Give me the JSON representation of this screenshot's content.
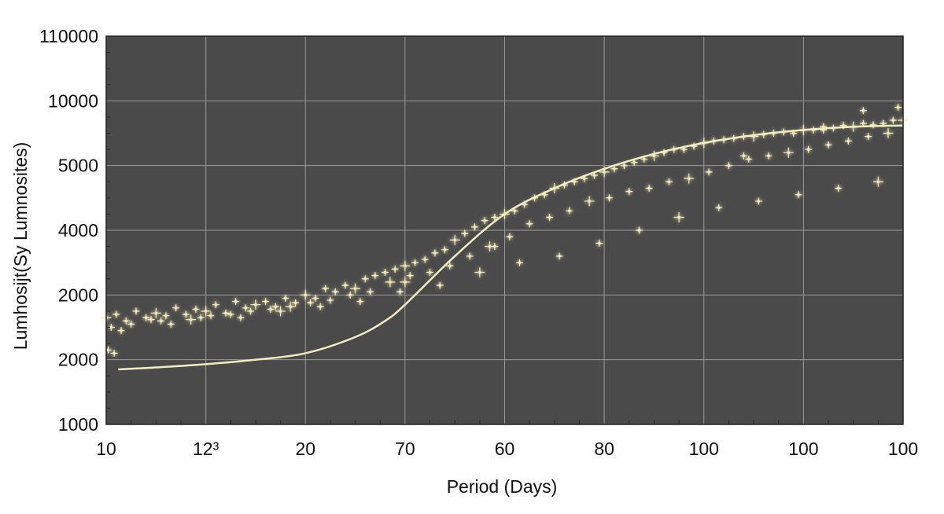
{
  "chart_data": {
    "type": "scatter",
    "title": "",
    "xlabel": "Period (Days)",
    "ylabel": "Lumhosijt(Sy Lumnosites)",
    "x_tick_labels": [
      "10",
      "12³",
      "20",
      "70",
      "60",
      "80",
      "100",
      "100",
      "100"
    ],
    "y_tick_labels": [
      "1000",
      "2000",
      "2000",
      "4000",
      "5000",
      "10000",
      "110000"
    ],
    "xlim": [
      0,
      8
    ],
    "ylim": [
      0,
      6
    ],
    "grid": true,
    "legend": "none",
    "colors": {
      "plot_background": "#4a4a4a",
      "grid": "#9a9a9a",
      "points": "#f4eab8",
      "curve": "#f2eec0",
      "text": "#111111"
    },
    "series": [
      {
        "name": "fit-curve",
        "style": "line",
        "x": [
          0.12,
          0.5,
          1.0,
          1.5,
          2.0,
          2.5,
          2.8,
          3.0,
          3.5,
          4.0,
          4.5,
          5.0,
          5.5,
          6.0,
          6.5,
          7.0,
          7.5,
          8.0
        ],
        "y": [
          0.85,
          0.88,
          0.93,
          1.0,
          1.1,
          1.35,
          1.6,
          1.85,
          2.6,
          3.25,
          3.65,
          3.95,
          4.18,
          4.35,
          4.47,
          4.55,
          4.6,
          4.62
        ]
      },
      {
        "name": "observations",
        "style": "scatter",
        "x": [
          0.0,
          0.1,
          0.2,
          0.3,
          0.4,
          0.5,
          0.6,
          0.7,
          0.8,
          0.9,
          1.0,
          1.1,
          1.2,
          1.3,
          1.4,
          1.5,
          1.6,
          1.7,
          1.8,
          1.9,
          2.0,
          2.1,
          2.2,
          2.3,
          2.4,
          2.5,
          2.6,
          2.7,
          2.8,
          2.9,
          3.0,
          3.1,
          3.2,
          3.3,
          3.4,
          3.5,
          3.6,
          3.7,
          3.8,
          3.9,
          4.0,
          4.1,
          4.2,
          4.3,
          4.4,
          4.5,
          4.6,
          4.7,
          4.8,
          4.9,
          5.0,
          5.1,
          5.2,
          5.3,
          5.4,
          5.5,
          5.6,
          5.7,
          5.8,
          5.9,
          6.0,
          6.1,
          6.2,
          6.3,
          6.4,
          6.5,
          6.6,
          6.7,
          6.8,
          6.9,
          7.0,
          7.1,
          7.2,
          7.3,
          7.4,
          7.5,
          7.6,
          7.7,
          7.8,
          7.9,
          8.0,
          0.05,
          0.25,
          0.45,
          0.65,
          0.85,
          1.05,
          1.25,
          1.45,
          1.65,
          1.85,
          2.05,
          2.25,
          2.45,
          2.65,
          2.85,
          3.05,
          3.25,
          3.45,
          3.65,
          3.85,
          4.05,
          4.25,
          4.45,
          4.65,
          4.85,
          5.05,
          5.25,
          5.45,
          5.65,
          5.85,
          6.05,
          6.25,
          6.45,
          6.65,
          6.85,
          7.05,
          7.25,
          7.45,
          7.65,
          7.85,
          0.15,
          0.55,
          0.95,
          1.35,
          1.75,
          2.15,
          2.55,
          2.95,
          3.35,
          3.75,
          4.15,
          4.55,
          4.95,
          5.35,
          5.75,
          6.15,
          6.55,
          6.95,
          7.35,
          7.75,
          0.02,
          0.08,
          7.6,
          7.95,
          3.0,
          3.9,
          6.4,
          7.2
        ],
        "y": [
          1.65,
          1.7,
          1.6,
          1.75,
          1.65,
          1.72,
          1.68,
          1.8,
          1.7,
          1.78,
          1.75,
          1.85,
          1.72,
          1.9,
          1.8,
          1.85,
          1.9,
          1.82,
          1.95,
          1.88,
          2.0,
          1.95,
          2.1,
          2.05,
          2.15,
          2.1,
          2.25,
          2.3,
          2.35,
          2.4,
          2.45,
          2.5,
          2.55,
          2.65,
          2.7,
          2.85,
          2.95,
          3.05,
          3.15,
          3.2,
          3.25,
          3.3,
          3.4,
          3.5,
          3.55,
          3.65,
          3.7,
          3.75,
          3.8,
          3.85,
          3.9,
          3.95,
          4.0,
          4.05,
          4.1,
          4.15,
          4.2,
          4.25,
          4.25,
          4.3,
          4.35,
          4.38,
          4.4,
          4.42,
          4.45,
          4.45,
          4.48,
          4.5,
          4.52,
          4.5,
          4.55,
          4.55,
          4.6,
          4.58,
          4.62,
          4.6,
          4.65,
          4.63,
          4.65,
          4.7,
          4.7,
          1.5,
          1.55,
          1.62,
          1.55,
          1.62,
          1.68,
          1.7,
          1.75,
          1.78,
          1.82,
          1.88,
          1.92,
          2.0,
          2.05,
          2.2,
          2.3,
          2.35,
          2.45,
          2.6,
          2.75,
          2.9,
          3.1,
          3.2,
          3.3,
          3.45,
          3.5,
          3.6,
          3.65,
          3.75,
          3.8,
          3.9,
          4.0,
          4.1,
          4.15,
          4.2,
          4.25,
          4.32,
          4.38,
          4.45,
          4.5,
          1.45,
          1.6,
          1.65,
          1.65,
          1.75,
          1.82,
          1.9,
          2.05,
          2.15,
          2.35,
          2.5,
          2.6,
          2.8,
          3.0,
          3.2,
          3.35,
          3.45,
          3.55,
          3.65,
          3.75,
          1.15,
          1.1,
          4.85,
          4.9,
          2.2,
          2.75,
          4.15,
          4.55
        ]
      }
    ]
  }
}
